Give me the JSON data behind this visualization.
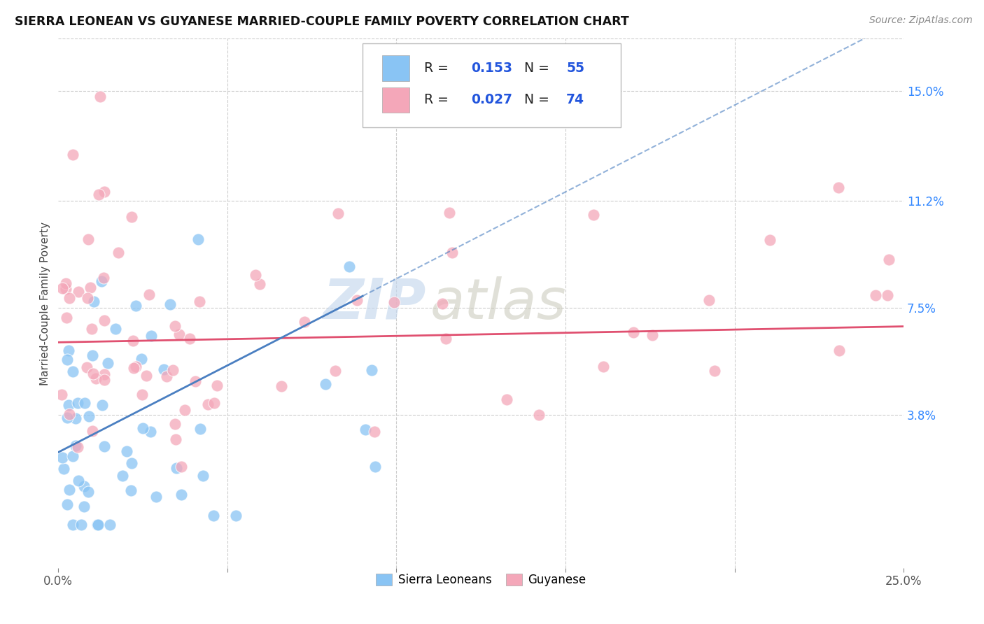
{
  "title": "SIERRA LEONEAN VS GUYANESE MARRIED-COUPLE FAMILY POVERTY CORRELATION CHART",
  "source": "Source: ZipAtlas.com",
  "ylabel": "Married-Couple Family Poverty",
  "xlim": [
    0.0,
    0.25
  ],
  "ylim": [
    -0.015,
    0.168
  ],
  "ytick_labels_right": [
    "15.0%",
    "11.2%",
    "7.5%",
    "3.8%"
  ],
  "ytick_vals_right": [
    0.15,
    0.112,
    0.075,
    0.038
  ],
  "watermark_zip": "ZIP",
  "watermark_atlas": "atlas",
  "color_sierra": "#89C4F4",
  "color_guyanese": "#F4A7B9",
  "color_line_sierra": "#4A7FC1",
  "color_line_guyanese": "#E05070",
  "background_color": "#FFFFFF",
  "grid_color": "#CCCCCC"
}
